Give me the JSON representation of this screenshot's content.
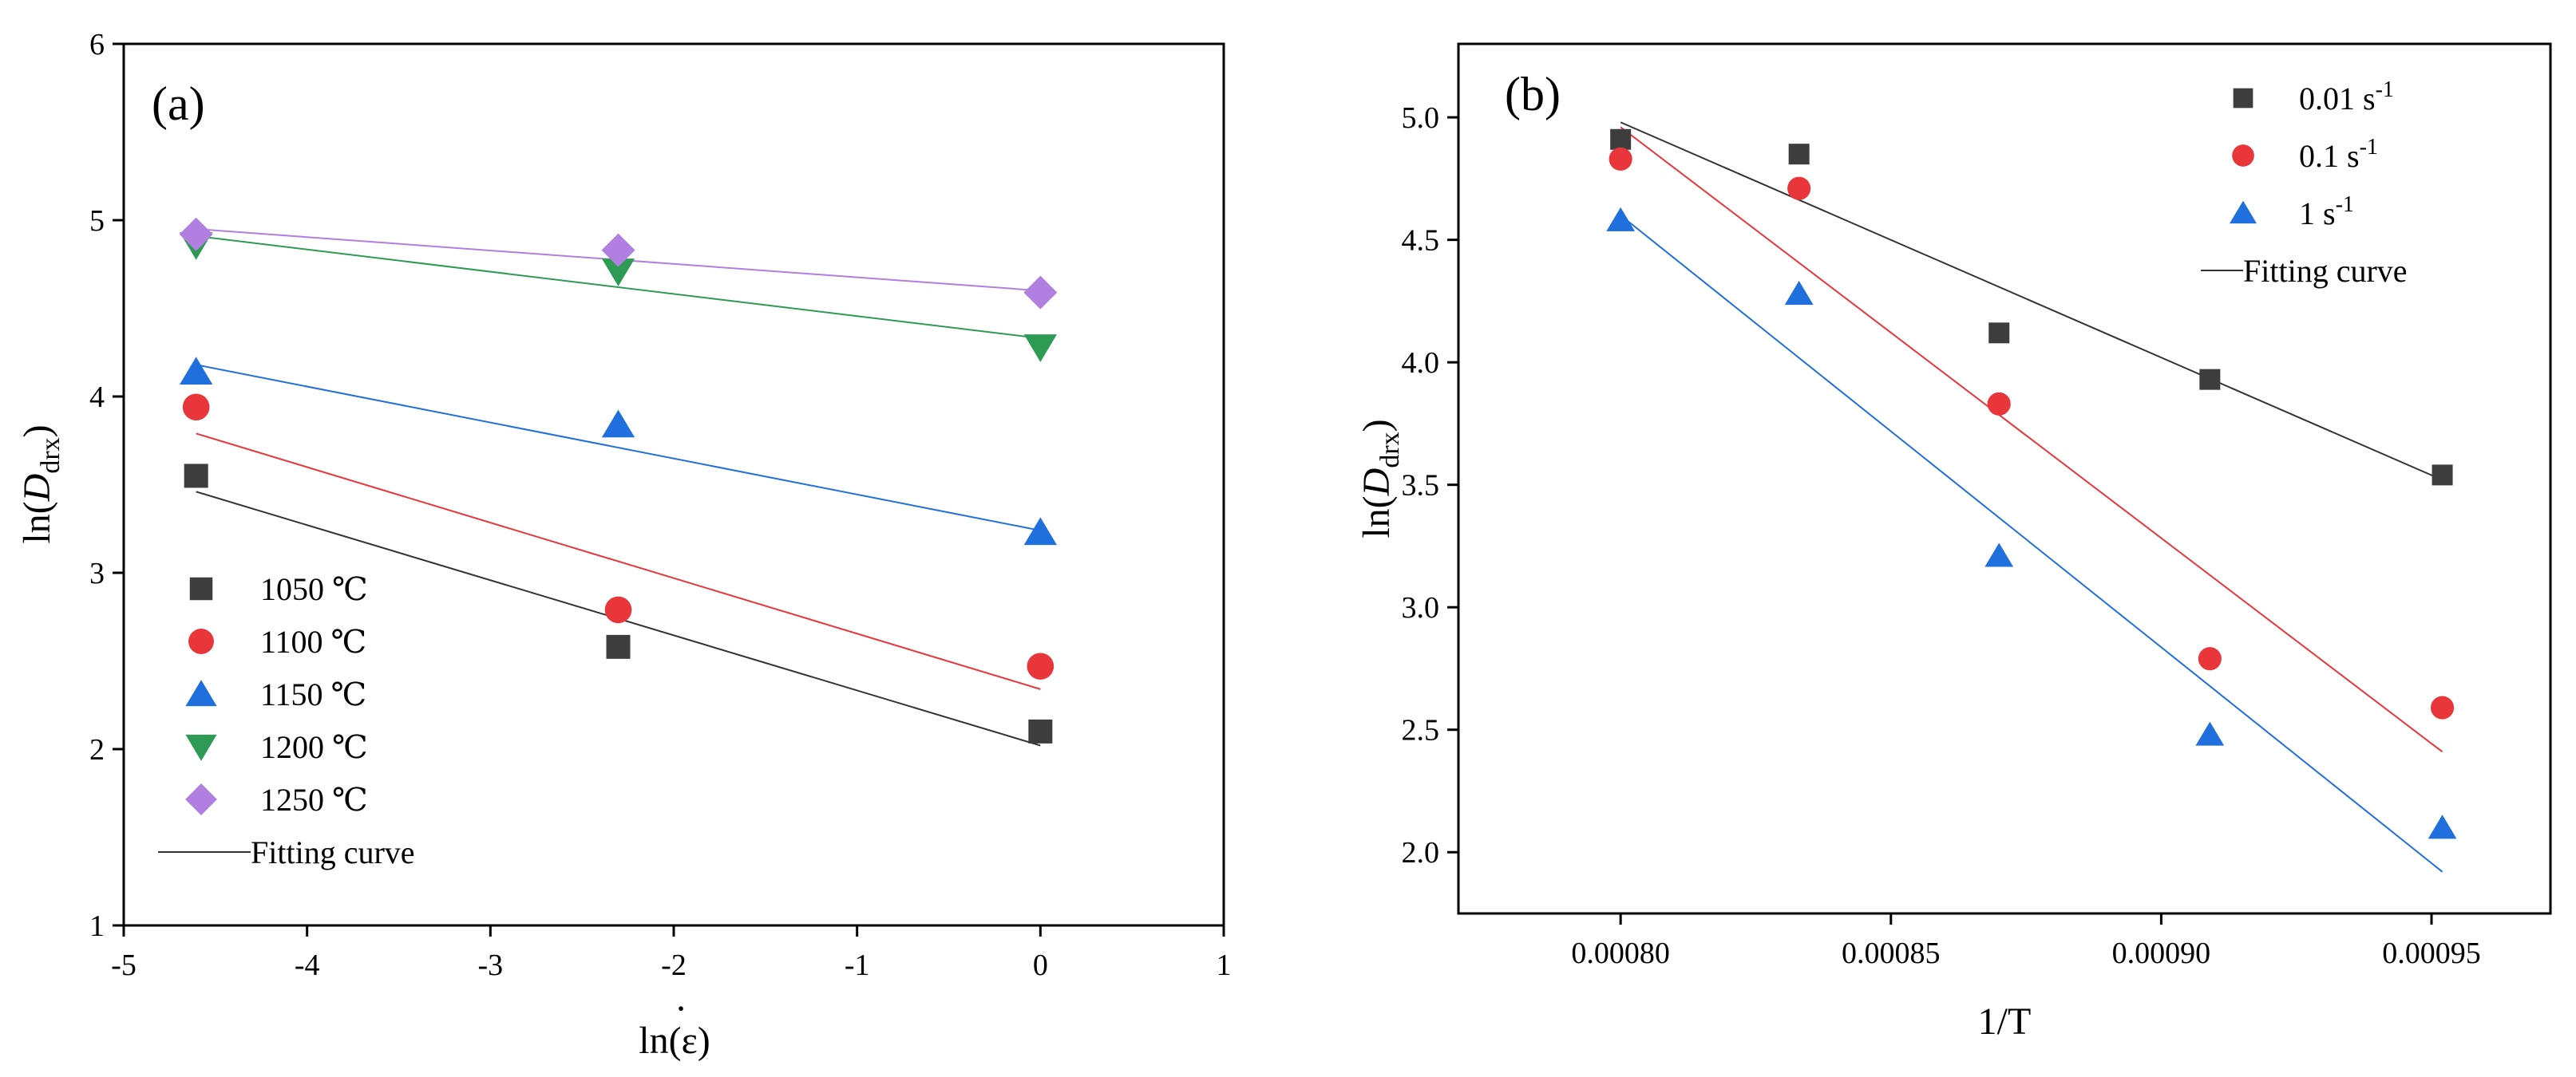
{
  "chart_data": [
    {
      "type": "scatter",
      "panel_label": "(a)",
      "xlabel": "ln(ε)",
      "xlabel_dot": "·",
      "ylabel_prefix": "ln(",
      "ylabel_italic": "D",
      "ylabel_sub": "drx",
      "ylabel_suffix": ")",
      "xlim": [
        -5,
        1
      ],
      "ylim": [
        1,
        6
      ],
      "xticks": [
        -5,
        -4,
        -3,
        -2,
        -1,
        0,
        1
      ],
      "yticks": [
        1,
        2,
        3,
        4,
        5,
        6
      ],
      "xtick_labels": [
        "-5",
        "-4",
        "-3",
        "-2",
        "-1",
        "0",
        "1"
      ],
      "ytick_labels": [
        "1",
        "2",
        "3",
        "4",
        "5",
        "6"
      ],
      "legend_position": "bottom-left",
      "fit_label": "Fitting curve",
      "series": [
        {
          "name": "1050 ℃",
          "marker": "square",
          "color": "#3d3d3d",
          "line_color": "#333333",
          "x": [
            -4.6052,
            -2.3026,
            0
          ],
          "y": [
            3.55,
            2.58,
            2.1
          ],
          "fit": [
            3.46,
            2.02
          ]
        },
        {
          "name": "1100 ℃",
          "marker": "circle",
          "color": "#e8363a",
          "line_color": "#e8363a",
          "x": [
            -4.6052,
            -2.3026,
            0
          ],
          "y": [
            3.94,
            2.79,
            2.47
          ],
          "fit": [
            3.79,
            2.34
          ]
        },
        {
          "name": "1150 ℃",
          "marker": "triangle-up",
          "color": "#1f6fdc",
          "line_color": "#1f6fdc",
          "x": [
            -4.6052,
            -2.3026,
            0
          ],
          "y": [
            4.14,
            3.84,
            3.23
          ],
          "fit": [
            4.18,
            3.24
          ]
        },
        {
          "name": "1200 ℃",
          "marker": "triangle-down",
          "color": "#2e9b55",
          "line_color": "#2e9b55",
          "x": [
            -4.6052,
            -2.3026,
            0
          ],
          "y": [
            4.86,
            4.71,
            4.28
          ],
          "fit": [
            4.91,
            4.33
          ]
        },
        {
          "name": "1250 ℃",
          "marker": "diamond",
          "color": "#b07fe0",
          "line_color": "#b07fe0",
          "x": [
            -4.6052,
            -2.3026,
            0
          ],
          "y": [
            4.92,
            4.83,
            4.59
          ],
          "fit": [
            4.95,
            4.6
          ]
        }
      ]
    },
    {
      "type": "scatter",
      "panel_label": "(b)",
      "xlabel": "1/T",
      "ylabel_prefix": "ln(",
      "ylabel_italic": "D",
      "ylabel_sub": "drx",
      "ylabel_suffix": ")",
      "xlim": [
        0.00077,
        0.000972
      ],
      "ylim": [
        1.75,
        5.3
      ],
      "xticks": [
        0.0008,
        0.00085,
        0.0009,
        0.00095
      ],
      "yticks": [
        2.0,
        2.5,
        3.0,
        3.5,
        4.0,
        4.5,
        5.0
      ],
      "xtick_labels": [
        "0.00080",
        "0.00085",
        "0.00090",
        "0.00095"
      ],
      "ytick_labels": [
        "2.0",
        "2.5",
        "3.0",
        "3.5",
        "4.0",
        "4.5",
        "5.0"
      ],
      "legend_position": "top-right",
      "fit_label": "Fitting curve",
      "series": [
        {
          "name": "0.01 s",
          "sup": "-1",
          "marker": "square",
          "color": "#3d3d3d",
          "line_color": "#333333",
          "x": [
            0.0008,
            0.000833,
            0.00087,
            0.000909,
            0.000952
          ],
          "y": [
            4.91,
            4.85,
            4.12,
            3.93,
            3.54
          ],
          "fit": [
            4.98,
            3.52
          ]
        },
        {
          "name": "0.1 s",
          "sup": "-1",
          "marker": "circle",
          "color": "#e8363a",
          "line_color": "#e8363a",
          "x": [
            0.0008,
            0.000833,
            0.00087,
            0.000909,
            0.000952
          ],
          "y": [
            4.83,
            4.71,
            3.83,
            2.79,
            2.59
          ],
          "fit": [
            4.96,
            2.41
          ]
        },
        {
          "name": "1 s",
          "sup": "-1",
          "marker": "triangle-up",
          "color": "#1f6fdc",
          "line_color": "#1f6fdc",
          "x": [
            0.0008,
            0.000833,
            0.00087,
            0.000909,
            0.000952
          ],
          "y": [
            4.58,
            4.28,
            3.21,
            2.48,
            2.1
          ],
          "fit": [
            4.6,
            1.92
          ]
        }
      ]
    }
  ]
}
